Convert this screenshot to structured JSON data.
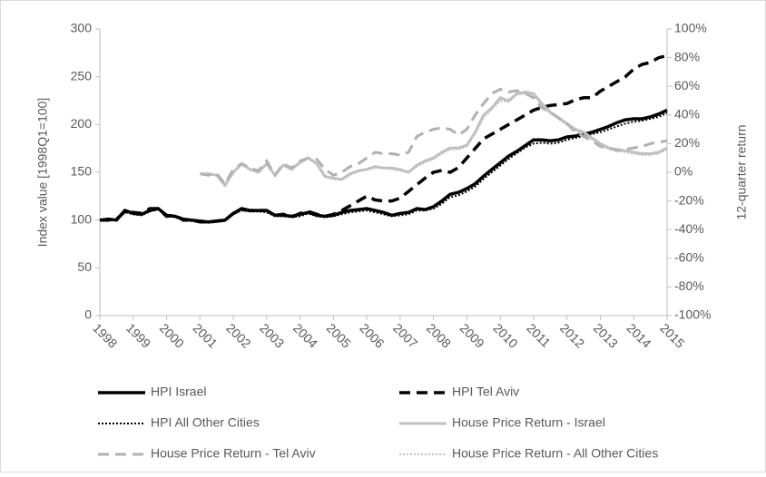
{
  "chart_data": {
    "type": "line",
    "x": [
      1998,
      1998.25,
      1998.5,
      1998.75,
      1999,
      1999.25,
      1999.5,
      1999.75,
      2000,
      2000.25,
      2000.5,
      2000.75,
      2001,
      2001.25,
      2001.5,
      2001.75,
      2002,
      2002.25,
      2002.5,
      2002.75,
      2003,
      2003.25,
      2003.5,
      2003.75,
      2004,
      2004.25,
      2004.5,
      2004.75,
      2005,
      2005.25,
      2005.5,
      2005.75,
      2006,
      2006.25,
      2006.5,
      2006.75,
      2007,
      2007.25,
      2007.5,
      2007.75,
      2008,
      2008.25,
      2008.5,
      2008.75,
      2009,
      2009.25,
      2009.5,
      2009.75,
      2010,
      2010.25,
      2010.5,
      2010.75,
      2011,
      2011.25,
      2011.5,
      2011.75,
      2012,
      2012.25,
      2012.5,
      2012.75,
      2013,
      2013.25,
      2013.5,
      2013.75,
      2014,
      2014.25,
      2014.5,
      2014.75,
      2015
    ],
    "xlim": [
      1998,
      2015
    ],
    "xticks": [
      1998,
      1999,
      2000,
      2001,
      2002,
      2003,
      2004,
      2005,
      2006,
      2007,
      2008,
      2009,
      2010,
      2011,
      2012,
      2013,
      2014,
      2015
    ],
    "ylabel": "Index value [1998Q1=100]",
    "ylim": [
      0,
      300
    ],
    "yticks": [
      0,
      50,
      100,
      150,
      200,
      250,
      300
    ],
    "y2label": "12-quarter return",
    "y2lim": [
      -100,
      100
    ],
    "y2ticks": [
      {
        "value": -100,
        "label": "-100%"
      },
      {
        "value": -80,
        "label": "-80%"
      },
      {
        "value": -60,
        "label": "-60%"
      },
      {
        "value": -40,
        "label": "-40%"
      },
      {
        "value": -20,
        "label": "-20%"
      },
      {
        "value": 0,
        "label": "0%"
      },
      {
        "value": 20,
        "label": "20%"
      },
      {
        "value": 40,
        "label": "40%"
      },
      {
        "value": 60,
        "label": "60%"
      },
      {
        "value": 80,
        "label": "80%"
      },
      {
        "value": 100,
        "label": "100%"
      }
    ],
    "grid": false,
    "series": [
      {
        "name": "HPI Israel",
        "color": "#000000",
        "style": "solid",
        "width": 3.5,
        "values": [
          100,
          101,
          100,
          110,
          107,
          106,
          110,
          112,
          105,
          104,
          101,
          100,
          99,
          98,
          99,
          100,
          107,
          112,
          110,
          110,
          110,
          105,
          105,
          104,
          106,
          108,
          105,
          104,
          105,
          108,
          110,
          111,
          112,
          110,
          108,
          105,
          107,
          108,
          112,
          111,
          114,
          120,
          127,
          129,
          133,
          138,
          146,
          153,
          160,
          167,
          172,
          178,
          184,
          184,
          183,
          184,
          187,
          188,
          190,
          192,
          195,
          198,
          202,
          205,
          206,
          206,
          208,
          211,
          215
        ]
      },
      {
        "name": "HPI Tel Aviv",
        "color": "#000000",
        "style": "dashed",
        "width": 3.5,
        "values": [
          100,
          100,
          101,
          109,
          108,
          107,
          112,
          112,
          104,
          105,
          100,
          100,
          98,
          98,
          99,
          100,
          107,
          111,
          110,
          110,
          110,
          105,
          106,
          103,
          107,
          109,
          106,
          104,
          106,
          110,
          115,
          120,
          125,
          121,
          120,
          120,
          123,
          130,
          137,
          144,
          150,
          152,
          150,
          155,
          165,
          175,
          185,
          190,
          195,
          200,
          205,
          210,
          215,
          218,
          220,
          221,
          222,
          226,
          228,
          228,
          235,
          240,
          245,
          250,
          258,
          263,
          265,
          270,
          272
        ]
      },
      {
        "name": "HPI All Other Cities",
        "color": "#000000",
        "style": "dotted",
        "width": 2,
        "values": [
          100,
          100,
          100,
          108,
          106,
          105,
          109,
          111,
          104,
          103,
          100,
          99,
          98,
          97,
          98,
          99,
          106,
          110,
          109,
          109,
          108,
          104,
          104,
          103,
          104,
          107,
          104,
          103,
          104,
          106,
          108,
          109,
          110,
          108,
          106,
          104,
          105,
          106,
          110,
          110,
          112,
          117,
          124,
          126,
          130,
          135,
          143,
          150,
          157,
          164,
          170,
          176,
          180,
          181,
          180,
          181,
          184,
          186,
          188,
          190,
          192,
          195,
          198,
          201,
          203,
          204,
          206,
          208,
          212
        ]
      },
      {
        "name": "House Price Return - Israel",
        "color": "#c0c0c0",
        "style": "solid",
        "width": 3,
        "axis": "y2",
        "values": [
          null,
          null,
          null,
          null,
          null,
          null,
          null,
          null,
          null,
          null,
          null,
          null,
          -1,
          -1,
          -2,
          -9,
          0,
          6,
          2,
          0,
          6,
          -2,
          5,
          2,
          7,
          10,
          6,
          -3,
          -4,
          -5,
          -1,
          1,
          2,
          4,
          3,
          3,
          2,
          0,
          5,
          8,
          10,
          14,
          17,
          17,
          19,
          28,
          40,
          45,
          52,
          50,
          55,
          56,
          55,
          48,
          42,
          38,
          34,
          30,
          28,
          24,
          20,
          17,
          16,
          15,
          14,
          13,
          13,
          14,
          17
        ]
      },
      {
        "name": "House Price Return - Tel Aviv",
        "color": "#b0b0b0",
        "style": "dashed",
        "width": 3,
        "axis": "y2",
        "values": [
          null,
          null,
          null,
          null,
          null,
          null,
          null,
          null,
          null,
          null,
          null,
          null,
          -1,
          -2,
          -1,
          -8,
          2,
          6,
          3,
          1,
          8,
          -2,
          6,
          3,
          8,
          10,
          9,
          2,
          -2,
          0,
          4,
          6,
          10,
          14,
          13,
          13,
          12,
          14,
          25,
          28,
          30,
          31,
          30,
          26,
          30,
          40,
          48,
          55,
          58,
          56,
          57,
          55,
          52,
          45,
          42,
          38,
          34,
          28,
          25,
          22,
          18,
          17,
          15,
          16,
          17,
          18,
          20,
          21,
          22
        ]
      },
      {
        "name": "House Price Return - All Other Cities",
        "color": "#c0c0c0",
        "style": "dotted",
        "width": 2,
        "axis": "y2",
        "values": [
          null,
          null,
          null,
          null,
          null,
          null,
          null,
          null,
          null,
          null,
          null,
          null,
          -1,
          -1,
          -2,
          -10,
          0,
          5,
          2,
          0,
          5,
          -2,
          5,
          2,
          6,
          10,
          6,
          -3,
          -5,
          -5,
          -2,
          1,
          2,
          3,
          3,
          2,
          1,
          0,
          4,
          7,
          9,
          13,
          16,
          16,
          18,
          27,
          38,
          44,
          50,
          49,
          54,
          55,
          54,
          47,
          41,
          37,
          33,
          29,
          27,
          23,
          19,
          16,
          15,
          14,
          13,
          12,
          12,
          13,
          16
        ]
      }
    ]
  }
}
